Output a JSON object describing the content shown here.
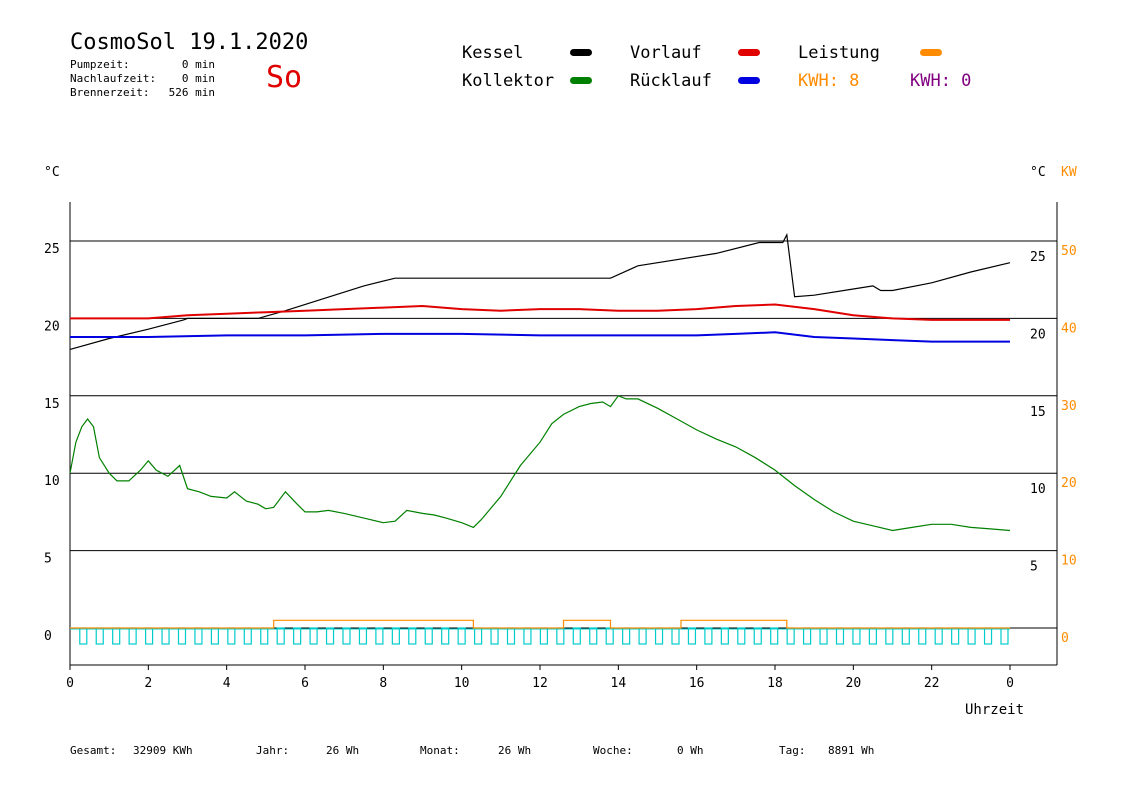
{
  "header": {
    "title": "CosmoSol 19.1.2020",
    "day": "So",
    "info": [
      {
        "label": "Pumpzeit:",
        "value": "0 min"
      },
      {
        "label": "Nachlaufzeit:",
        "value": "0 min"
      },
      {
        "label": "Brennerzeit:",
        "value": "526 min"
      }
    ]
  },
  "legend": {
    "kessel": "Kessel",
    "vorlauf": "Vorlauf",
    "leistung": "Leistung",
    "kollektor": "Kollektor",
    "ruecklauf": "Rücklauf",
    "kwh1": "KWH: 8",
    "kwh2": "KWH: 0"
  },
  "footer": {
    "gesamt_label": "Gesamt:",
    "gesamt": "32909 KWh",
    "jahr_label": "Jahr:",
    "jahr": "26 Wh",
    "monat_label": "Monat:",
    "monat": "26 Wh",
    "woche_label": "Woche:",
    "woche": "0 Wh",
    "tag_label": "Tag:",
    "tag": "8891 Wh"
  },
  "colors": {
    "kessel": "#000000",
    "kollektor": "#008000",
    "vorlauf": "#e00000",
    "ruecklauf": "#0000e0",
    "leistung": "#ff8c00",
    "kwh2": "#800080",
    "pump": "#00cccc"
  },
  "chart_data": {
    "type": "line",
    "xlabel": "Uhrzeit",
    "ylabel_left": "°C",
    "ylabel_right_1": "°C",
    "ylabel_right_2": "KW",
    "x_ticks": [
      "0",
      "2",
      "4",
      "6",
      "8",
      "10",
      "12",
      "14",
      "16",
      "18",
      "20",
      "22",
      "0"
    ],
    "y_ticks_left": [
      "25",
      "20",
      "15",
      "10",
      "5",
      "0"
    ],
    "y_ticks_right": [
      "25",
      "20",
      "15",
      "10",
      "5"
    ],
    "y_ticks_kw": [
      "50",
      "40",
      "30",
      "20",
      "10",
      "0"
    ],
    "xlim": [
      0,
      24
    ],
    "ylim": [
      -2.3,
      27.5
    ],
    "grid_y": [
      0,
      5,
      10,
      15,
      20,
      25
    ],
    "series": [
      {
        "name": "Kessel",
        "key": "kessel",
        "x": [
          0,
          1,
          2,
          2.9,
          3,
          4,
          4.8,
          5.5,
          6.5,
          7.5,
          8.3,
          9,
          10,
          11,
          12,
          13,
          13.8,
          14.5,
          16.5,
          17.6,
          18.2,
          18.3,
          18.5,
          19,
          20,
          20.5,
          20.7,
          21,
          22,
          23,
          24
        ],
        "y": [
          18.0,
          18.7,
          19.3,
          19.9,
          20.0,
          20.0,
          20.0,
          20.5,
          21.3,
          22.1,
          22.6,
          22.6,
          22.6,
          22.6,
          22.6,
          22.6,
          22.6,
          23.4,
          24.2,
          24.9,
          24.9,
          25.4,
          21.4,
          21.5,
          21.9,
          22.1,
          21.8,
          21.8,
          22.3,
          23.0,
          23.6
        ]
      },
      {
        "name": "Vorlauf",
        "key": "vorlauf",
        "x": [
          0,
          2,
          3,
          4,
          5,
          6,
          7,
          8,
          9,
          10,
          11,
          12,
          13,
          14,
          15,
          16,
          17,
          18,
          19,
          20,
          21,
          22,
          23,
          24
        ],
        "y": [
          20.0,
          20.0,
          20.2,
          20.3,
          20.4,
          20.5,
          20.6,
          20.7,
          20.8,
          20.6,
          20.5,
          20.6,
          20.6,
          20.5,
          20.5,
          20.6,
          20.8,
          20.9,
          20.6,
          20.2,
          20.0,
          19.9,
          19.9,
          19.9
        ]
      },
      {
        "name": "Rücklauf",
        "key": "ruecklauf",
        "x": [
          0,
          2,
          4,
          6,
          8,
          10,
          12,
          14,
          16,
          17,
          18,
          19,
          20,
          21,
          22,
          23,
          24
        ],
        "y": [
          18.8,
          18.8,
          18.9,
          18.9,
          19.0,
          19.0,
          18.9,
          18.9,
          18.9,
          19.0,
          19.1,
          18.8,
          18.7,
          18.6,
          18.5,
          18.5,
          18.5
        ]
      },
      {
        "name": "Kollektor",
        "key": "kollektor",
        "x": [
          0,
          0.15,
          0.3,
          0.45,
          0.6,
          0.75,
          1.0,
          1.2,
          1.5,
          1.8,
          2.0,
          2.2,
          2.5,
          2.8,
          3.0,
          3.3,
          3.6,
          4.0,
          4.2,
          4.5,
          4.8,
          5.0,
          5.2,
          5.5,
          5.8,
          6.0,
          6.3,
          6.6,
          7.0,
          7.5,
          8.0,
          8.3,
          8.6,
          9.0,
          9.3,
          9.6,
          10.0,
          10.3,
          10.5,
          11.0,
          11.5,
          12.0,
          12.3,
          12.6,
          13.0,
          13.3,
          13.6,
          13.8,
          14.0,
          14.2,
          14.5,
          15.0,
          15.5,
          16.0,
          16.5,
          17.0,
          17.5,
          18.0,
          18.5,
          19.0,
          19.5,
          20.0,
          20.5,
          21.0,
          21.5,
          22.0,
          22.5,
          23.0,
          23.5,
          24.0
        ],
        "y": [
          10.0,
          12.0,
          13.0,
          13.5,
          13.0,
          11.0,
          10.0,
          9.5,
          9.5,
          10.2,
          10.8,
          10.2,
          9.8,
          10.5,
          9.0,
          8.8,
          8.5,
          8.4,
          8.8,
          8.2,
          8.0,
          7.7,
          7.8,
          8.8,
          8.0,
          7.5,
          7.5,
          7.6,
          7.4,
          7.1,
          6.8,
          6.9,
          7.6,
          7.4,
          7.3,
          7.1,
          6.8,
          6.5,
          7.0,
          8.5,
          10.5,
          12.0,
          13.2,
          13.8,
          14.3,
          14.5,
          14.6,
          14.3,
          15.0,
          14.8,
          14.8,
          14.2,
          13.5,
          12.8,
          12.2,
          11.7,
          11.0,
          10.2,
          9.2,
          8.3,
          7.5,
          6.9,
          6.6,
          6.3,
          6.5,
          6.7,
          6.7,
          6.5,
          6.4,
          6.3
        ]
      },
      {
        "name": "Leistung",
        "key": "leistung",
        "unit": "KW",
        "x": [
          0,
          5.2,
          5.2,
          10.3,
          10.3,
          12.6,
          12.6,
          13.8,
          13.8,
          15.6,
          15.6,
          18.3,
          18.3,
          24
        ],
        "y": [
          0,
          0,
          1.0,
          1.0,
          0,
          0,
          1.0,
          1.0,
          0,
          0,
          1.0,
          1.0,
          0,
          0
        ]
      }
    ]
  }
}
